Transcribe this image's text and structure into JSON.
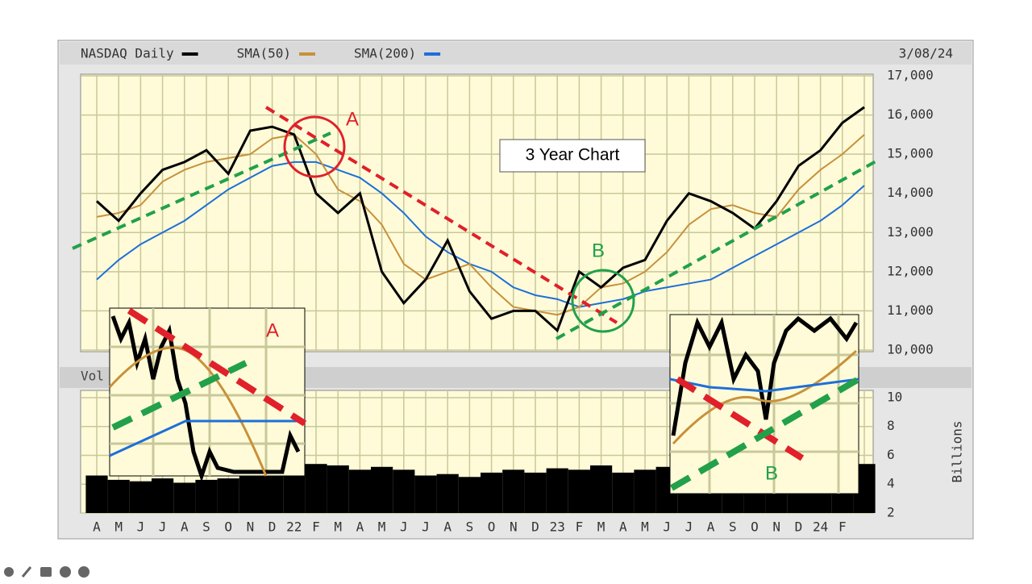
{
  "chart_data": [
    {
      "type": "line",
      "date": "3/08/24",
      "annotations": [
        "A",
        "B",
        "3 Year Chart"
      ],
      "categories": [
        "A",
        "M",
        "J",
        "J",
        "A",
        "S",
        "O",
        "N",
        "D",
        "22",
        "F",
        "M",
        "A",
        "M",
        "J",
        "J",
        "A",
        "S",
        "O",
        "N",
        "D",
        "23",
        "F",
        "M",
        "A",
        "M",
        "J",
        "J",
        "A",
        "S",
        "O",
        "N",
        "D",
        "24",
        "F",
        null
      ],
      "series": [
        {
          "name": "NASDAQ Daily",
          "color": "#000000",
          "values": [
            13800,
            13300,
            14000,
            14600,
            14800,
            15100,
            14500,
            15600,
            15700,
            15500,
            14000,
            13500,
            14000,
            12000,
            11200,
            11800,
            12800,
            11500,
            10800,
            11000,
            11000,
            10500,
            12000,
            11600,
            12100,
            12300,
            13300,
            14000,
            13800,
            13500,
            13100,
            13800,
            14700,
            15100,
            15800,
            16200
          ]
        },
        {
          "name": "SMA(50)",
          "color": "#c8913c",
          "values": [
            13400,
            13500,
            13700,
            14300,
            14600,
            14800,
            14900,
            15000,
            15400,
            15500,
            15000,
            14100,
            13800,
            13200,
            12200,
            11800,
            12000,
            12200,
            11600,
            11100,
            11000,
            10900,
            11100,
            11600,
            11700,
            12000,
            12500,
            13200,
            13600,
            13700,
            13500,
            13400,
            14100,
            14600,
            15000,
            15500
          ]
        },
        {
          "name": "SMA(200)",
          "color": "#1e6fd9",
          "values": [
            11800,
            12300,
            12700,
            13000,
            13300,
            13700,
            14100,
            14400,
            14700,
            14800,
            14800,
            14600,
            14400,
            14000,
            13500,
            12900,
            12500,
            12200,
            12000,
            11600,
            11400,
            11300,
            11100,
            11200,
            11300,
            11500,
            11600,
            11700,
            11800,
            12100,
            12400,
            12700,
            13000,
            13300,
            13700,
            14200
          ]
        }
      ],
      "ylim": [
        10000,
        17000
      ],
      "yticks": [
        {
          "value": 10000,
          "label": "10,000"
        },
        {
          "value": 11000,
          "label": "11,000"
        },
        {
          "value": 12000,
          "label": "12,000"
        },
        {
          "value": 13000,
          "label": "13,000"
        },
        {
          "value": 14000,
          "label": "14,000"
        },
        {
          "value": 15000,
          "label": "15,000"
        },
        {
          "value": 16000,
          "label": "16,000"
        },
        {
          "value": 17000,
          "label": "17,000"
        }
      ],
      "grid": true
    },
    {
      "type": "bar",
      "title": "Vol",
      "ylabel": "Billions",
      "color": "#000000",
      "values": [
        4.6,
        4.3,
        4.2,
        4.4,
        4.1,
        4.3,
        4.4,
        4.8,
        5.0,
        5.2,
        5.4,
        5.3,
        5.0,
        5.2,
        5.0,
        4.6,
        4.7,
        4.5,
        4.8,
        5.0,
        4.8,
        5.1,
        5.0,
        5.3,
        4.8,
        5.0,
        5.2,
        5.0,
        4.8,
        4.9,
        5.0,
        5.1,
        5.3,
        5.0,
        5.2,
        5.4
      ],
      "ylim": [
        2,
        10.5
      ],
      "yticks": [
        2,
        4,
        6,
        8,
        10
      ],
      "grid": true
    }
  ]
}
